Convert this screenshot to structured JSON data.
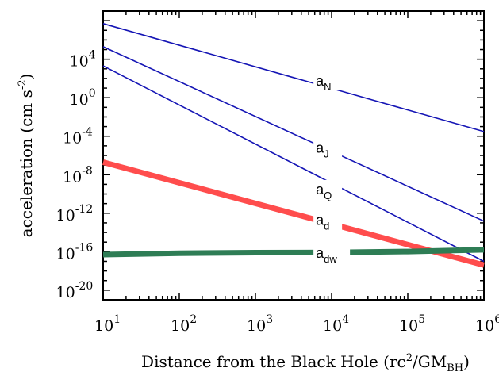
{
  "chart_data": {
    "type": "line",
    "title": "",
    "x_scale": "log",
    "y_scale": "log",
    "xlim": [
      10,
      1000000
    ],
    "ylim": [
      1e-21,
      1000000000.0
    ],
    "xlabel": {
      "main": "Distance from the Black Hole (rc",
      "sup": "2",
      "mid": "/GM",
      "sub": "BH",
      "end": ")"
    },
    "ylabel": {
      "main": "acceleration (cm s",
      "sup": "-2",
      "end": ")"
    },
    "x_ticks": [
      {
        "base": "10",
        "exp": "1",
        "value": 10
      },
      {
        "base": "10",
        "exp": "2",
        "value": 100
      },
      {
        "base": "10",
        "exp": "3",
        "value": 1000
      },
      {
        "base": "10",
        "exp": "4",
        "value": 10000
      },
      {
        "base": "10",
        "exp": "5",
        "value": 100000
      },
      {
        "base": "10",
        "exp": "6",
        "value": 1000000
      }
    ],
    "y_ticks": [
      {
        "base": "10",
        "exp": "4",
        "value": 10000.0
      },
      {
        "base": "10",
        "exp": "0",
        "value": 1
      },
      {
        "base": "10",
        "exp": "-4",
        "value": 0.0001
      },
      {
        "base": "10",
        "exp": "-8",
        "value": 1e-08
      },
      {
        "base": "10",
        "exp": "-12",
        "value": 1e-12
      },
      {
        "base": "10",
        "exp": "-16",
        "value": 1e-16
      },
      {
        "base": "10",
        "exp": "-20",
        "value": 1e-20
      }
    ],
    "grid": false,
    "legend": "none",
    "series": [
      {
        "label": {
          "base": "a",
          "sub": "N"
        },
        "color": "#1515b5",
        "weight": "thin",
        "x": [
          10,
          1000000
        ],
        "y": [
          50000000.0,
          0.0003
        ],
        "label_at": [
          7000,
          40.0
        ]
      },
      {
        "label": {
          "base": "a",
          "sub": "J"
        },
        "color": "#1515b5",
        "weight": "thin",
        "x": [
          10,
          1000000
        ],
        "y": [
          200000.0,
          1.5e-13
        ],
        "label_at": [
          7000,
          4e-06
        ]
      },
      {
        "label": {
          "base": "a",
          "sub": "Q"
        },
        "color": "#1515b5",
        "weight": "thin",
        "x": [
          10,
          1000000
        ],
        "y": [
          2000.0,
          1e-17
        ],
        "label_at": [
          7000,
          2e-10
        ]
      },
      {
        "label": {
          "base": "a",
          "sub": "d"
        },
        "color": "#ff4d4d",
        "weight": "thick",
        "x": [
          10,
          1000000
        ],
        "y": [
          2e-07,
          4e-18
        ],
        "label_at": [
          7000,
          1.3e-13
        ]
      },
      {
        "label": {
          "base": "a",
          "sub": "dw"
        },
        "color": "#2e7d55",
        "weight": "thick",
        "x": [
          10,
          100,
          1000,
          10000,
          100000,
          1000000
        ],
        "y": [
          5e-17,
          7e-17,
          8e-17,
          8.5e-17,
          1.05e-16,
          1.6e-16
        ],
        "label_at": [
          7000,
          5e-17
        ]
      }
    ]
  }
}
